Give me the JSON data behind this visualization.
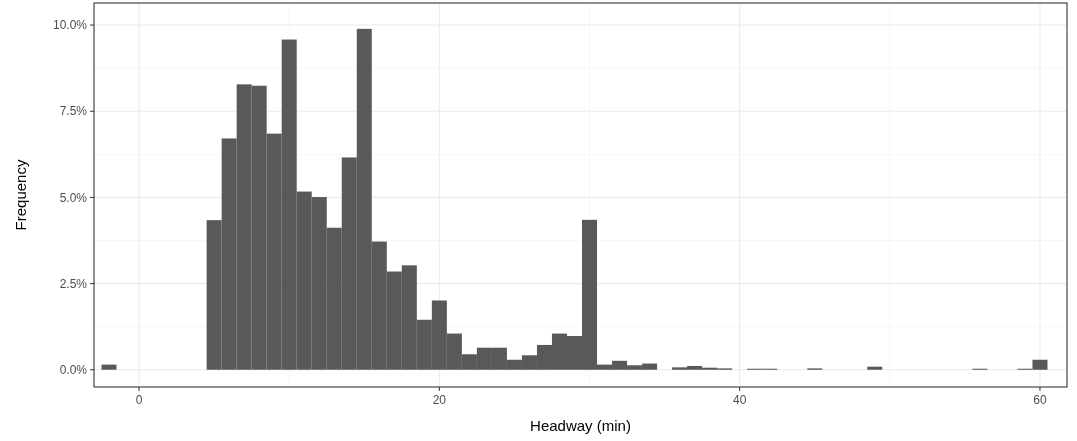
{
  "chart_data": {
    "type": "histogram",
    "xlabel": "Headway (min)",
    "ylabel": "Frequency",
    "bins": [
      -2.5,
      -1.5,
      -0.5,
      0.5,
      1.5,
      2.5,
      3.5,
      4.5,
      5.5,
      6.5,
      7.5,
      8.5,
      9.5,
      10.5,
      11.5,
      12.5,
      13.5,
      14.5,
      15.5,
      16.5,
      17.5,
      18.5,
      19.5,
      20.5,
      21.5,
      22.5,
      23.5,
      24.5,
      25.5,
      26.5,
      27.5,
      28.5,
      29.5,
      30.5,
      31.5,
      32.5,
      33.5,
      34.5,
      35.5,
      36.5,
      37.5,
      38.5,
      39.5,
      40.5,
      41.5,
      42.5,
      43.5,
      44.5,
      45.5,
      46.5,
      47.5,
      48.5,
      49.5,
      50.5,
      51.5,
      52.5,
      53.5,
      54.5,
      55.5,
      56.5,
      57.5,
      58.5,
      59.5,
      60.5
    ],
    "values": [
      0.15,
      0,
      0,
      0,
      0,
      0,
      0,
      4.34,
      6.71,
      8.28,
      8.24,
      6.85,
      9.58,
      5.17,
      5.01,
      4.12,
      6.16,
      9.89,
      3.72,
      2.85,
      3.03,
      1.45,
      2.01,
      1.05,
      0.45,
      0.64,
      0.64,
      0.29,
      0.42,
      0.72,
      1.05,
      0.98,
      4.35,
      0.15,
      0.26,
      0.13,
      0.18,
      0,
      0.07,
      0.11,
      0.06,
      0.04,
      0,
      0.03,
      0.03,
      0,
      0,
      0.04,
      0,
      0,
      0,
      0.09,
      0,
      0,
      0,
      0,
      0,
      0,
      0.03,
      0,
      0,
      0.03,
      0.29
    ],
    "color": "#595959",
    "xlim": [
      -3.0,
      61.8
    ],
    "xticks": [
      0,
      20,
      40,
      60
    ],
    "ylim": [
      -0.5,
      10.64
    ],
    "yticks": [
      {
        "value": 0,
        "label": "0.0%"
      },
      {
        "value": 2.5,
        "label": "2.5%"
      },
      {
        "value": 5,
        "label": "5.0%"
      },
      {
        "value": 7.5,
        "label": "7.5%"
      },
      {
        "value": 10,
        "label": "10.0%"
      }
    ],
    "grid": true
  }
}
